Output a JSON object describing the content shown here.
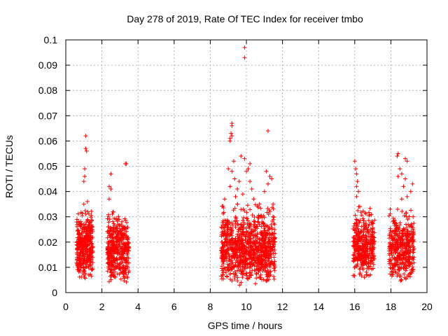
{
  "chart_data": {
    "type": "scatter",
    "title": "Day 278 of 2019, Rate Of TEC Index for receiver tmbo",
    "xlabel": "GPS time / hours",
    "ylabel": "ROTI / TECUs",
    "xlim": [
      0,
      20
    ],
    "ylim": [
      0,
      0.1
    ],
    "x_ticks": [
      0,
      2,
      4,
      6,
      8,
      10,
      12,
      14,
      16,
      18,
      20
    ],
    "y_ticks": [
      0,
      0.01,
      0.02,
      0.03,
      0.04,
      0.05,
      0.06,
      0.07,
      0.08,
      0.09,
      0.1
    ],
    "x_tick_labels": [
      "0",
      "2",
      "4",
      "6",
      "8",
      "10",
      "12",
      "14",
      "16",
      "18",
      "20"
    ],
    "y_tick_labels": [
      "0",
      "0.01",
      "0.02",
      "0.03",
      "0.04",
      "0.05",
      "0.06",
      "0.07",
      "0.08",
      "0.09",
      "0.1"
    ],
    "grid": true,
    "marker": "+",
    "color": "#ff0000",
    "clusters": [
      {
        "x_range": [
          0.6,
          1.5
        ],
        "y_range": [
          0.005,
          0.033
        ],
        "count": 380
      },
      {
        "x_range": [
          2.3,
          3.5
        ],
        "y_range": [
          0.003,
          0.033
        ],
        "count": 420
      },
      {
        "x_range": [
          8.6,
          11.6
        ],
        "y_range": [
          0.002,
          0.035
        ],
        "count": 950
      },
      {
        "x_range": [
          15.9,
          17.1
        ],
        "y_range": [
          0.004,
          0.034
        ],
        "count": 380
      },
      {
        "x_range": [
          17.9,
          19.3
        ],
        "y_range": [
          0.003,
          0.033
        ],
        "count": 420
      }
    ],
    "outliers": [
      [
        1.1,
        0.062
      ],
      [
        1.1,
        0.057
      ],
      [
        1.15,
        0.056
      ],
      [
        1.05,
        0.049
      ],
      [
        1.0,
        0.044
      ],
      [
        1.05,
        0.046
      ],
      [
        1.0,
        0.035
      ],
      [
        1.2,
        0.036
      ],
      [
        2.5,
        0.047
      ],
      [
        2.4,
        0.042
      ],
      [
        2.5,
        0.041
      ],
      [
        2.4,
        0.037
      ],
      [
        3.3,
        0.051
      ],
      [
        3.35,
        0.051
      ],
      [
        9.9,
        0.097
      ],
      [
        9.9,
        0.093
      ],
      [
        9.2,
        0.067
      ],
      [
        9.2,
        0.066
      ],
      [
        9.15,
        0.063
      ],
      [
        9.2,
        0.062
      ],
      [
        9.1,
        0.061
      ],
      [
        9.1,
        0.06
      ],
      [
        11.2,
        0.064
      ],
      [
        9.3,
        0.052
      ],
      [
        9.0,
        0.049
      ],
      [
        9.2,
        0.048
      ],
      [
        9.35,
        0.045
      ],
      [
        9.1,
        0.042
      ],
      [
        9.7,
        0.054
      ],
      [
        9.9,
        0.053
      ],
      [
        10.2,
        0.051
      ],
      [
        10.1,
        0.049
      ],
      [
        10.0,
        0.048
      ],
      [
        10.2,
        0.044
      ],
      [
        10.3,
        0.041
      ],
      [
        9.6,
        0.044
      ],
      [
        9.5,
        0.041
      ],
      [
        9.8,
        0.039
      ],
      [
        11.1,
        0.048
      ],
      [
        11.3,
        0.046
      ],
      [
        11.4,
        0.045
      ],
      [
        11.2,
        0.043
      ],
      [
        11.0,
        0.04
      ],
      [
        9.4,
        0.038
      ],
      [
        10.4,
        0.037
      ],
      [
        8.8,
        0.037
      ],
      [
        16.0,
        0.052
      ],
      [
        16.05,
        0.049
      ],
      [
        16.1,
        0.047
      ],
      [
        16.15,
        0.044
      ],
      [
        16.1,
        0.042
      ],
      [
        16.2,
        0.04
      ],
      [
        16.1,
        0.038
      ],
      [
        18.4,
        0.055
      ],
      [
        18.35,
        0.054
      ],
      [
        18.8,
        0.053
      ],
      [
        18.9,
        0.052
      ],
      [
        18.5,
        0.049
      ],
      [
        18.6,
        0.047
      ],
      [
        18.4,
        0.046
      ],
      [
        18.8,
        0.045
      ],
      [
        18.7,
        0.042
      ],
      [
        19.2,
        0.043
      ],
      [
        18.9,
        0.038
      ],
      [
        18.6,
        0.037
      ],
      [
        19.1,
        0.04
      ]
    ]
  }
}
